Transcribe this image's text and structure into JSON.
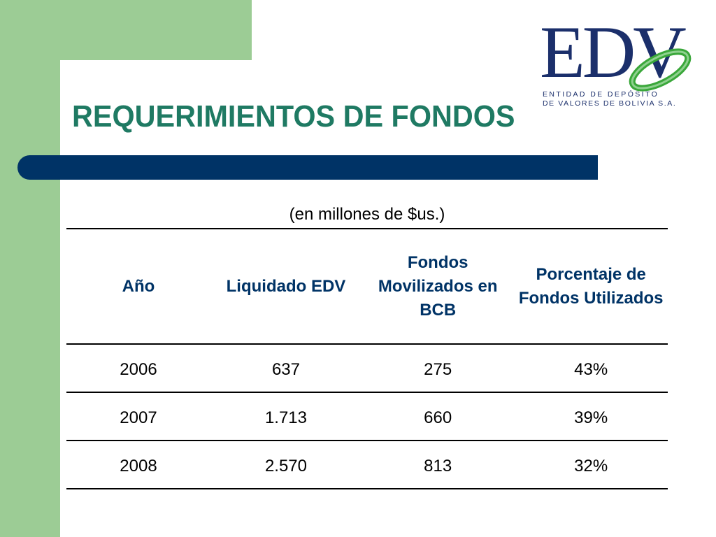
{
  "slide": {
    "title": "REQUERIMIENTOS DE FONDOS",
    "subtitle": "(en millones de $us.)"
  },
  "logo": {
    "letters": "EDV",
    "tagline_line1": "ENTIDAD DE DEPÓSITO",
    "tagline_line2": "DE VALORES DE BOLIVIA S.A."
  },
  "table": {
    "headers": [
      "Año",
      "Liquidado EDV",
      "Fondos Movilizados en BCB",
      "Porcentaje de Fondos Utilizados"
    ],
    "rows": [
      [
        "2006",
        "637",
        "275",
        "43%"
      ],
      [
        "2007",
        "1.713",
        "660",
        "39%"
      ],
      [
        "2008",
        "2.570",
        "813",
        "32%"
      ]
    ]
  },
  "colors": {
    "green_band": "#9ccc95",
    "title": "#1f7a63",
    "bar": "#003366",
    "header_text": "#003366",
    "logo_navy": "#1b2f6b",
    "logo_green": "#3aa73a"
  }
}
